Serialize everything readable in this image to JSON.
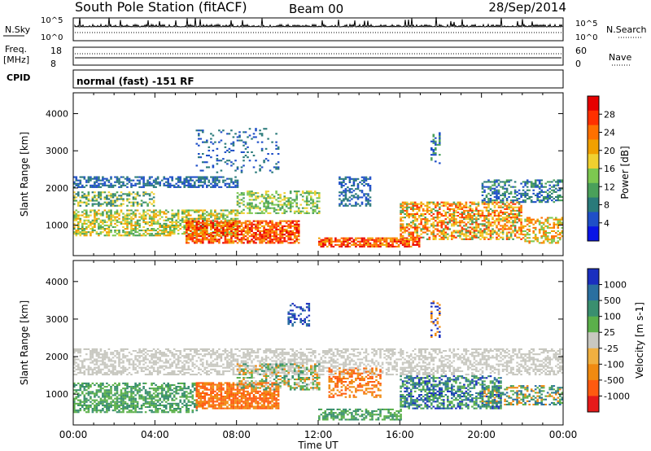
{
  "header": {
    "station": "South Pole Station (fitACF)",
    "beam": "Beam 00",
    "date": "28/Sep/2014"
  },
  "top_panels": {
    "nsky_label": "N.Sky",
    "nsearch_label": "N.Search",
    "nsky_ticks": [
      "10^5",
      "10^0"
    ],
    "nsearch_ticks": [
      "10^5",
      "10^0"
    ],
    "freq_label": "Freq.",
    "freq_unit": "[MHz]",
    "freq_ticks": [
      "18",
      "8"
    ],
    "nave_label": "Nave",
    "nave_ticks": [
      "60",
      "0"
    ],
    "cpid_label": "CPID",
    "cpid_value": "normal (fast) -151 RF"
  },
  "chart_data": [
    {
      "type": "heatmap",
      "name": "power",
      "ylabel": "Slant Range [km]",
      "ylim": [
        180,
        4560
      ],
      "yticks": [
        "1000",
        "2000",
        "3000",
        "4000"
      ],
      "colorbar": {
        "label": "Power [dB]",
        "ticks": [
          "4",
          "8",
          "12",
          "16",
          "20",
          "24",
          "28"
        ],
        "colors": [
          "#0a14e6",
          "#1f4fc8",
          "#2a7a7a",
          "#4aa05a",
          "#7dc850",
          "#f0d030",
          "#f0a000",
          "#ff7000",
          "#ff3000",
          "#e60000"
        ]
      }
    },
    {
      "type": "heatmap",
      "name": "velocity",
      "ylabel": "Slant Range [km]",
      "ylim": [
        180,
        4560
      ],
      "yticks": [
        "1000",
        "2000",
        "3000",
        "4000"
      ],
      "xlabel": "Time UT",
      "xticks": [
        "00:00",
        "04:00",
        "08:00",
        "12:00",
        "16:00",
        "20:00",
        "00:00"
      ],
      "xlim": [
        0,
        24
      ],
      "colorbar": {
        "label": "Velocity [m s-1]",
        "ticks": [
          "1000",
          "500",
          "100",
          "25",
          "-25",
          "-100",
          "-500",
          "-1000"
        ],
        "colors": [
          "#1a2fbf",
          "#2a6fa0",
          "#3a8f6f",
          "#5bb04a",
          "#c8c8c0",
          "#f0b040",
          "#f08a10",
          "#ff5a10",
          "#e61a1a"
        ]
      }
    }
  ]
}
